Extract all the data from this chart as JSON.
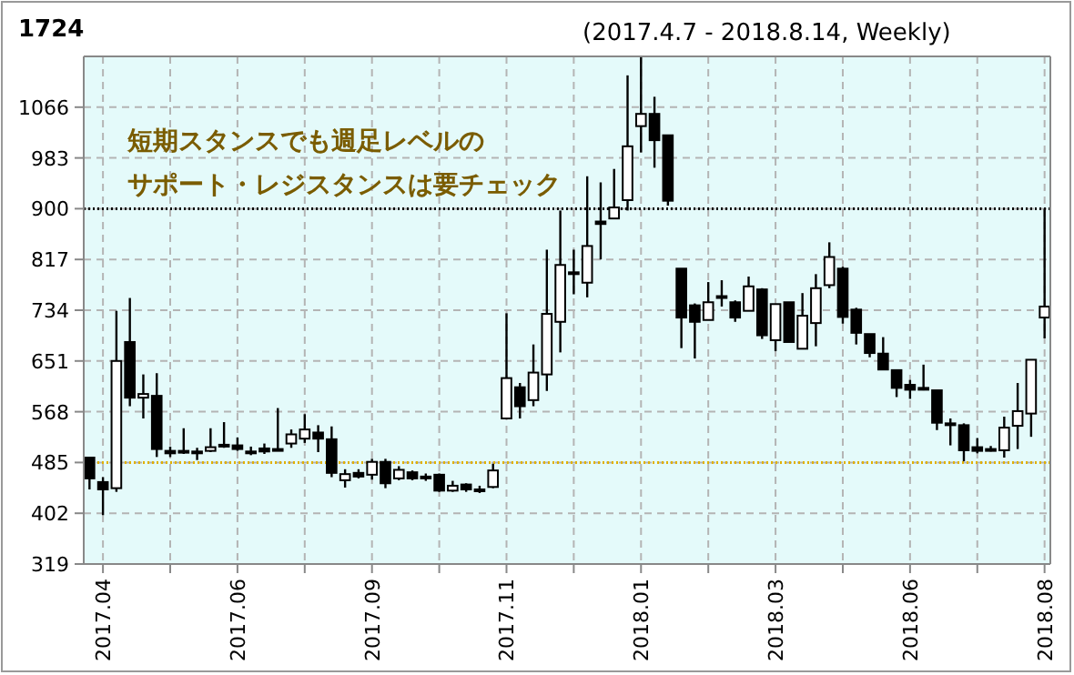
{
  "chart_data": {
    "type": "candlestick",
    "title": "1724",
    "subtitle": "(2017.4.7 - 2018.8.14, Weekly)",
    "annotations": [
      "短期スタンスでも週足レベルの",
      "サポート・レジスタンスは要チェック"
    ],
    "x": [
      "2017-04-03",
      "2017-04-10",
      "2017-04-17",
      "2017-04-24",
      "2017-05-01",
      "2017-05-08",
      "2017-05-15",
      "2017-05-22",
      "2017-05-29",
      "2017-06-05",
      "2017-06-12",
      "2017-06-19",
      "2017-06-26",
      "2017-07-03",
      "2017-07-10",
      "2017-07-17",
      "2017-07-24",
      "2017-07-31",
      "2017-08-07",
      "2017-08-14",
      "2017-08-21",
      "2017-08-28",
      "2017-09-04",
      "2017-09-11",
      "2017-09-18",
      "2017-09-25",
      "2017-10-02",
      "2017-10-09",
      "2017-10-16",
      "2017-10-23",
      "2017-10-30",
      "2017-11-06",
      "2017-11-13",
      "2017-11-20",
      "2017-11-27",
      "2017-12-04",
      "2017-12-11",
      "2017-12-18",
      "2017-12-25",
      "2018-01-01",
      "2018-01-08",
      "2018-01-15",
      "2018-01-22",
      "2018-01-29",
      "2018-02-05",
      "2018-02-12",
      "2018-02-19",
      "2018-02-26",
      "2018-03-05",
      "2018-03-12",
      "2018-03-19",
      "2018-03-26",
      "2018-04-02",
      "2018-04-09",
      "2018-04-16",
      "2018-04-23",
      "2018-04-30",
      "2018-05-07",
      "2018-05-14",
      "2018-05-21",
      "2018-05-28",
      "2018-06-04",
      "2018-06-11",
      "2018-06-18",
      "2018-06-25",
      "2018-07-02",
      "2018-07-09",
      "2018-07-16",
      "2018-07-23",
      "2018-07-30",
      "2018-08-06",
      "2018-08-13"
    ],
    "ohlc": [
      [
        493,
        493,
        441,
        459
      ],
      [
        453,
        461,
        399,
        441
      ],
      [
        443,
        733,
        437,
        651
      ],
      [
        682,
        754,
        577,
        591
      ],
      [
        591,
        629,
        557,
        597
      ],
      [
        594,
        631,
        494,
        507
      ],
      [
        504,
        511,
        494,
        500
      ],
      [
        503,
        541,
        499,
        504
      ],
      [
        503,
        509,
        489,
        501
      ],
      [
        504,
        541,
        502,
        510
      ],
      [
        512,
        551,
        509,
        514
      ],
      [
        513,
        526,
        504,
        507
      ],
      [
        503,
        511,
        497,
        502
      ],
      [
        508,
        516,
        499,
        503
      ],
      [
        506,
        574,
        504,
        507
      ],
      [
        516,
        539,
        509,
        531
      ],
      [
        524,
        564,
        517,
        539
      ],
      [
        534,
        546,
        502,
        524
      ],
      [
        523,
        544,
        461,
        468
      ],
      [
        456,
        474,
        444,
        466
      ],
      [
        468,
        474,
        459,
        462
      ],
      [
        465,
        491,
        457,
        486
      ],
      [
        486,
        491,
        443,
        451
      ],
      [
        459,
        479,
        456,
        473
      ],
      [
        469,
        472,
        456,
        459
      ],
      [
        461,
        467,
        455,
        462
      ],
      [
        465,
        467,
        437,
        439
      ],
      [
        439,
        455,
        437,
        447
      ],
      [
        449,
        451,
        437,
        441
      ],
      [
        440,
        447,
        435,
        441
      ],
      [
        445,
        483,
        443,
        472
      ],
      [
        557,
        729,
        557,
        623
      ],
      [
        608,
        615,
        557,
        577
      ],
      [
        587,
        678,
        577,
        632
      ],
      [
        629,
        833,
        602,
        728
      ],
      [
        715,
        897,
        665,
        808
      ],
      [
        795,
        833,
        760,
        796
      ],
      [
        779,
        953,
        755,
        839
      ],
      [
        879,
        943,
        817,
        875
      ],
      [
        884,
        965,
        884,
        902
      ],
      [
        914,
        1118,
        897,
        1002
      ],
      [
        1035,
        1149,
        992,
        1055
      ],
      [
        1055,
        1083,
        967,
        1012
      ],
      [
        1020,
        1020,
        905,
        913
      ],
      [
        802,
        802,
        672,
        722
      ],
      [
        742,
        745,
        655,
        715
      ],
      [
        718,
        780,
        718,
        747
      ],
      [
        756,
        783,
        740,
        757
      ],
      [
        747,
        750,
        715,
        722
      ],
      [
        733,
        789,
        733,
        773
      ],
      [
        768,
        770,
        687,
        693
      ],
      [
        685,
        744,
        667,
        744
      ],
      [
        747,
        747,
        682,
        682
      ],
      [
        671,
        762,
        671,
        725
      ],
      [
        713,
        793,
        675,
        770
      ],
      [
        775,
        845,
        770,
        821
      ],
      [
        802,
        805,
        712,
        723
      ],
      [
        735,
        738,
        678,
        697
      ],
      [
        695,
        695,
        657,
        664
      ],
      [
        663,
        690,
        637,
        637
      ],
      [
        636,
        636,
        592,
        607
      ],
      [
        612,
        620,
        589,
        604
      ],
      [
        606,
        645,
        603,
        607
      ],
      [
        603,
        603,
        538,
        550
      ],
      [
        549,
        557,
        513,
        548
      ],
      [
        546,
        549,
        487,
        505
      ],
      [
        510,
        525,
        500,
        504
      ],
      [
        506,
        512,
        503,
        507
      ],
      [
        505,
        560,
        493,
        542
      ],
      [
        545,
        615,
        507,
        569
      ],
      [
        565,
        653,
        527,
        653
      ],
      [
        722,
        900,
        688,
        740
      ]
    ],
    "xlim": [
      "2017-03-31",
      "2018-08-16"
    ],
    "xticks": [
      {
        "value": "2017-04-10",
        "label": "2017.04"
      },
      {
        "value": "2017-05-15",
        "label": null
      },
      {
        "value": "2017-06-19",
        "label": "2017.06"
      },
      {
        "value": "2017-07-24",
        "label": null
      },
      {
        "value": "2017-08-28",
        "label": "2017.09"
      },
      {
        "value": "2017-10-02",
        "label": null
      },
      {
        "value": "2017-11-06",
        "label": "2017.11"
      },
      {
        "value": "2017-12-11",
        "label": null
      },
      {
        "value": "2018-01-15",
        "label": "2018.01"
      },
      {
        "value": "2018-02-19",
        "label": null
      },
      {
        "value": "2018-03-26",
        "label": "2018.03"
      },
      {
        "value": "2018-04-30",
        "label": null
      },
      {
        "value": "2018-06-04",
        "label": "2018.06"
      },
      {
        "value": "2018-07-09",
        "label": null
      },
      {
        "value": "2018-08-13",
        "label": "2018.08"
      }
    ],
    "ylim": [
      319,
      1149
    ],
    "yticks": [
      319,
      402,
      485,
      568,
      651,
      734,
      817,
      900,
      983,
      1066
    ],
    "grid": true,
    "ref_lines": [
      {
        "axis": "y",
        "value": 900,
        "color": "#000000",
        "line_style": "dotted"
      },
      {
        "axis": "y",
        "value": 485,
        "color": "#e0b000",
        "line_style": "dotted"
      }
    ]
  }
}
